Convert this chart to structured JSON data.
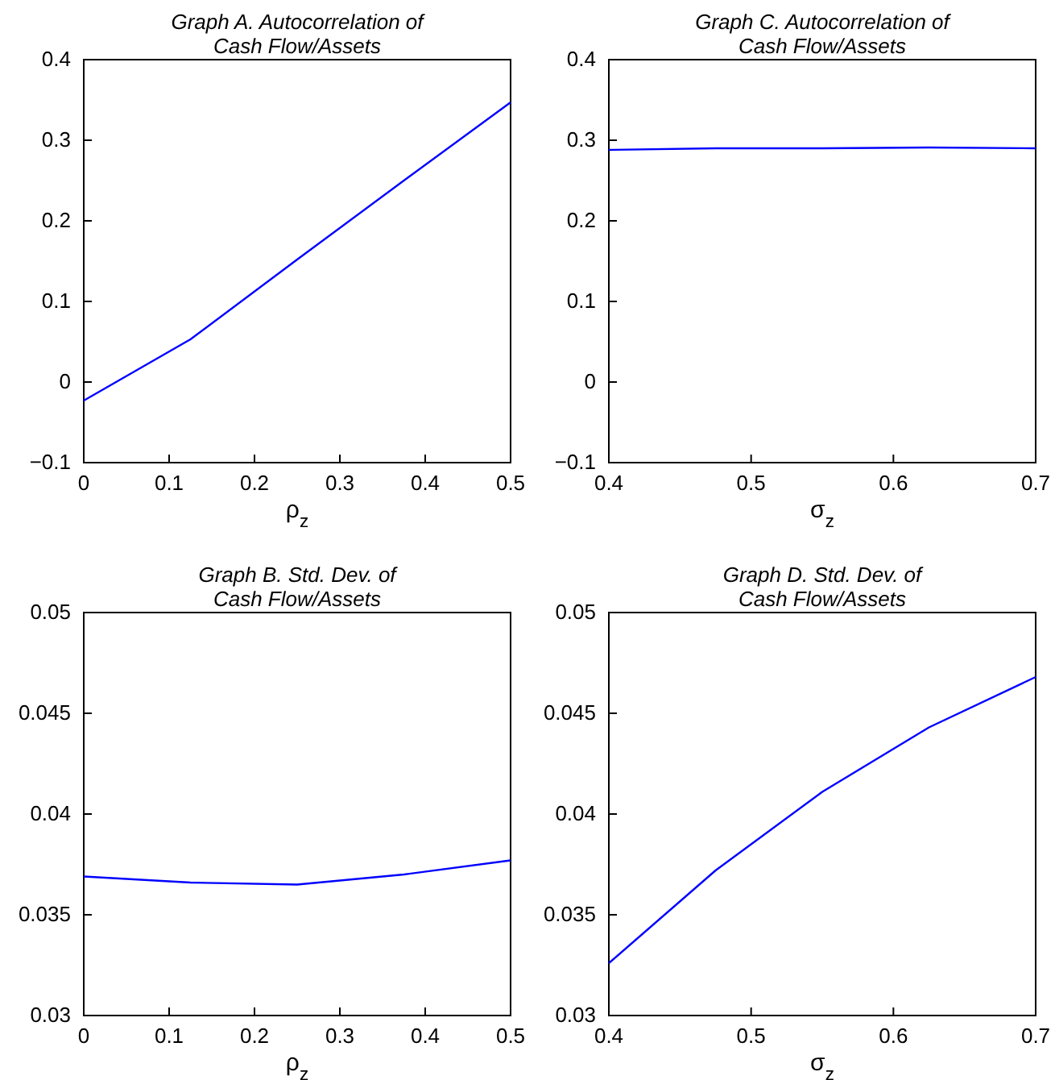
{
  "chart_data": [
    {
      "type": "line",
      "title": "Graph A. Autocorrelation of\nCash Flow/Assets",
      "xlabel": "ρ$_{z}$",
      "x": [
        0,
        0.125,
        0.25,
        0.375,
        0.5
      ],
      "series": [
        {
          "color": "#0000ff",
          "values": [
            -0.023,
            0.053,
            0.152,
            0.25,
            0.347
          ]
        }
      ],
      "xlim": [
        0,
        0.5
      ],
      "xticks": [
        0,
        0.1,
        0.2,
        0.3,
        0.4,
        0.5
      ],
      "ylim": [
        -0.1,
        0.4
      ],
      "yticks": [
        {
          "value": -0.1,
          "label": "−0.1"
        },
        0,
        0.1,
        0.2,
        0.3,
        0.4
      ],
      "grid": false
    },
    {
      "type": "line",
      "title": "Graph C. Autocorrelation of\nCash Flow/Assets",
      "xlabel": "σ$_{z}$",
      "x": [
        0.4,
        0.475,
        0.55,
        0.625,
        0.7
      ],
      "series": [
        {
          "color": "#0000ff",
          "values": [
            0.288,
            0.29,
            0.29,
            0.291,
            0.29
          ]
        }
      ],
      "xlim": [
        0.4,
        0.7
      ],
      "xticks": [
        0.4,
        0.5,
        0.6,
        0.7
      ],
      "ylim": [
        -0.1,
        0.4
      ],
      "yticks": [
        {
          "value": -0.1,
          "label": "−0.1"
        },
        0,
        0.1,
        0.2,
        0.3,
        0.4
      ],
      "grid": false
    },
    {
      "type": "line",
      "title": "Graph B. Std. Dev. of\nCash Flow/Assets",
      "xlabel": "ρ$_{z}$",
      "x": [
        0,
        0.125,
        0.25,
        0.375,
        0.5
      ],
      "series": [
        {
          "color": "#0000ff",
          "values": [
            0.0369,
            0.0366,
            0.0365,
            0.037,
            0.0377
          ]
        }
      ],
      "xlim": [
        0,
        0.5
      ],
      "xticks": [
        0,
        0.1,
        0.2,
        0.3,
        0.4,
        0.5
      ],
      "ylim": [
        0.03,
        0.05
      ],
      "yticks": [
        0.03,
        0.035,
        0.04,
        0.045,
        0.05
      ],
      "grid": false
    },
    {
      "type": "line",
      "title": "Graph D. Std. Dev. of\nCash Flow/Assets",
      "xlabel": "σ$_{z}$",
      "x": [
        0.4,
        0.475,
        0.55,
        0.625,
        0.7
      ],
      "series": [
        {
          "color": "#0000ff",
          "values": [
            0.0326,
            0.0372,
            0.0411,
            0.0443,
            0.0468
          ]
        }
      ],
      "xlim": [
        0.4,
        0.7
      ],
      "xticks": [
        0.4,
        0.5,
        0.6,
        0.7
      ],
      "ylim": [
        0.03,
        0.05
      ],
      "yticks": [
        0.03,
        0.035,
        0.04,
        0.045,
        0.05
      ],
      "grid": false
    }
  ]
}
